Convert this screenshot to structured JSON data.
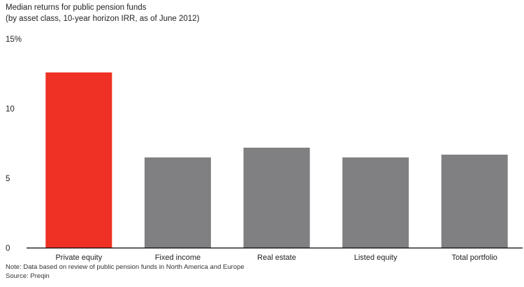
{
  "title": "Median returns for public pension funds",
  "subtitle": "(by asset class, 10-year horizon IRR, as of June 2012)",
  "note": "Note: Data based on review of public pension funds in North America and Europe",
  "source": "Source: Preqin",
  "colors": {
    "highlight": "#ee3124",
    "default": "#808083",
    "axis": "#000000"
  },
  "chart_data": {
    "type": "bar",
    "categories": [
      "Private equity",
      "Fixed income",
      "Real estate",
      "Listed equity",
      "Total portfolio"
    ],
    "values": [
      12.6,
      6.5,
      7.2,
      6.5,
      6.7
    ],
    "highlight_index": 0,
    "ylim": [
      0,
      15
    ],
    "yticks": [
      0,
      5,
      10,
      15
    ],
    "ytick_labels": [
      "0",
      "5",
      "10",
      "15%"
    ],
    "grid": false,
    "xlabel": "",
    "ylabel": ""
  }
}
